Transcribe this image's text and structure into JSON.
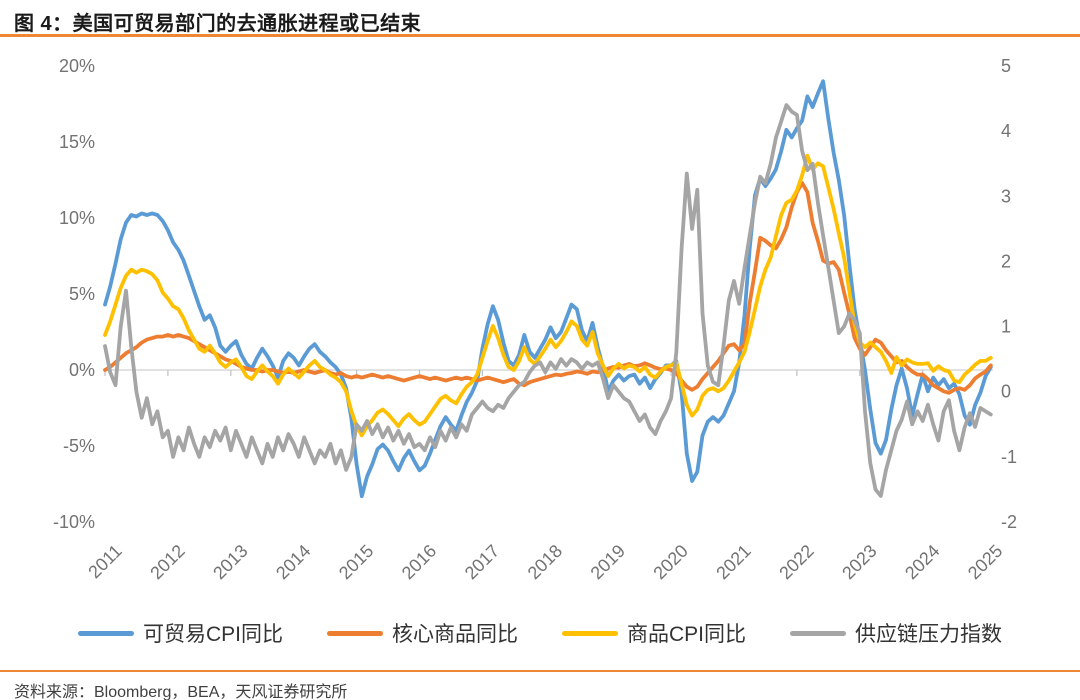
{
  "page": {
    "title": "图 4：美国可贸易部门的去通胀进程或已结束",
    "source": "资料来源：Bloomberg，BEA，天风证券研究所",
    "accent_color": "#ED8733",
    "background_color": "#FFFFFF"
  },
  "chart_data": {
    "type": "line",
    "title": "美国可贸易部门的去通胀进程或已结束",
    "x_start_year": 2011,
    "x_points_per_year": 12,
    "x_tick_labels": [
      "2011",
      "2012",
      "2013",
      "2014",
      "2015",
      "2016",
      "2017",
      "2018",
      "2019",
      "2020",
      "2021",
      "2022",
      "2023",
      "2024",
      "2025"
    ],
    "axes": {
      "left": {
        "ticks": [
          "20%",
          "15%",
          "10%",
          "5%",
          "0%",
          "-5%",
          "-10%"
        ],
        "max": 20,
        "min": -10
      },
      "right": {
        "ticks": [
          "5",
          "4",
          "3",
          "2",
          "1",
          "0",
          "-1",
          "-2"
        ],
        "max": 5,
        "min": -2
      }
    },
    "grid": "horizontal-zero-line-only",
    "gridline_color": "#D9D9D9",
    "tick_color": "#BFBFBF",
    "legend_position": "bottom",
    "series": [
      {
        "name": "可贸易CPI同比",
        "color": "#5B9BD5",
        "axis": "left",
        "values": [
          4.3,
          5.5,
          7.0,
          8.6,
          9.7,
          10.2,
          10.1,
          10.3,
          10.2,
          10.3,
          10.2,
          9.8,
          9.2,
          8.4,
          7.9,
          7.2,
          6.2,
          5.2,
          4.2,
          3.3,
          3.6,
          2.8,
          1.6,
          1.2,
          1.6,
          1.9,
          1.0,
          0.4,
          0.1,
          0.8,
          1.4,
          0.9,
          0.3,
          -0.5,
          0.6,
          1.1,
          0.8,
          0.3,
          0.9,
          1.4,
          1.7,
          1.2,
          0.9,
          0.5,
          0.2,
          -0.3,
          -1.2,
          -3.2,
          -6.2,
          -8.3,
          -7.0,
          -6.2,
          -5.2,
          -4.9,
          -5.3,
          -6.0,
          -6.6,
          -5.8,
          -5.3,
          -6.0,
          -6.6,
          -6.3,
          -5.5,
          -4.6,
          -3.7,
          -3.1,
          -3.6,
          -4.0,
          -3.0,
          -2.1,
          -1.5,
          -0.7,
          1.4,
          3.0,
          4.2,
          3.3,
          1.8,
          0.6,
          0.3,
          1.0,
          2.3,
          1.2,
          0.8,
          1.4,
          2.0,
          2.8,
          2.1,
          2.5,
          3.4,
          4.3,
          4.0,
          2.6,
          1.9,
          3.1,
          1.5,
          0.2,
          -1.4,
          -0.7,
          -0.3,
          -0.7,
          -0.4,
          -0.3,
          -0.9,
          -0.5,
          -1.2,
          -0.6,
          -0.2,
          0.3,
          0.3,
          0.6,
          -1.5,
          -5.5,
          -7.3,
          -6.7,
          -4.3,
          -3.4,
          -3.1,
          -3.4,
          -3.0,
          -2.2,
          -1.4,
          0.5,
          3.6,
          8.0,
          11.5,
          12.6,
          12.1,
          12.6,
          13.2,
          14.4,
          15.8,
          15.3,
          15.9,
          16.4,
          18.0,
          17.3,
          18.2,
          19.0,
          16.5,
          14.3,
          12.5,
          10.2,
          7.0,
          4.0,
          2.0,
          0.0,
          -2.6,
          -4.8,
          -5.5,
          -4.6,
          -2.6,
          -1.0,
          0.1,
          -1.2,
          -3.0,
          -1.6,
          -0.3,
          -1.4,
          -0.5,
          -1.0,
          -0.6,
          -1.2,
          -0.9,
          -1.6,
          -3.0,
          -3.6,
          -2.3,
          -1.5,
          -0.4,
          0.2
        ]
      },
      {
        "name": "核心商品同比",
        "color": "#ED7D31",
        "axis": "left",
        "values": [
          0.0,
          0.2,
          0.5,
          0.8,
          1.1,
          1.3,
          1.5,
          1.8,
          2.0,
          2.1,
          2.2,
          2.2,
          2.3,
          2.2,
          2.3,
          2.2,
          2.1,
          1.9,
          1.7,
          1.5,
          1.3,
          1.1,
          0.9,
          0.7,
          0.6,
          0.4,
          0.2,
          0.1,
          0.0,
          0.0,
          -0.1,
          0.0,
          0.0,
          -0.1,
          -0.2,
          -0.1,
          -0.2,
          -0.1,
          0.0,
          -0.1,
          -0.2,
          -0.1,
          0.0,
          -0.2,
          -0.3,
          -0.2,
          -0.4,
          -0.5,
          -0.4,
          -0.5,
          -0.4,
          -0.3,
          -0.4,
          -0.5,
          -0.4,
          -0.5,
          -0.6,
          -0.7,
          -0.6,
          -0.5,
          -0.4,
          -0.5,
          -0.6,
          -0.5,
          -0.6,
          -0.7,
          -0.6,
          -0.5,
          -0.6,
          -0.5,
          -0.6,
          -0.7,
          -0.6,
          -0.5,
          -0.6,
          -0.7,
          -0.8,
          -0.7,
          -0.6,
          -0.9,
          -1.0,
          -0.8,
          -0.7,
          -0.6,
          -0.5,
          -0.4,
          -0.3,
          -0.35,
          -0.25,
          -0.2,
          -0.1,
          -0.15,
          -0.25,
          -0.1,
          -0.15,
          -0.1,
          0.1,
          0.2,
          0.15,
          0.3,
          0.4,
          0.25,
          0.3,
          0.45,
          0.3,
          0.15,
          0.05,
          0.1,
          0.0,
          -0.2,
          -0.7,
          -1.1,
          -1.3,
          -1.1,
          -0.6,
          -0.2,
          0.2,
          0.6,
          1.1,
          1.6,
          1.7,
          1.3,
          1.7,
          4.4,
          6.5,
          8.7,
          8.5,
          8.2,
          8.0,
          8.6,
          9.4,
          10.7,
          11.7,
          12.3,
          11.7,
          9.7,
          8.5,
          7.2,
          7.0,
          7.1,
          6.6,
          5.1,
          3.7,
          2.1,
          1.4,
          1.0,
          1.5,
          2.0,
          1.8,
          1.3,
          0.9,
          0.5,
          0.6,
          0.2,
          -0.1,
          -0.3,
          -0.3,
          -0.6,
          -1.0,
          -1.2,
          -1.4,
          -1.5,
          -1.3,
          -1.2,
          -1.3,
          -1.0,
          -0.55,
          -0.3,
          -0.1,
          0.3
        ]
      },
      {
        "name": "商品CPI同比",
        "color": "#FFC000",
        "axis": "left",
        "values": [
          2.3,
          3.2,
          4.3,
          5.4,
          6.2,
          6.6,
          6.4,
          6.6,
          6.5,
          6.3,
          5.9,
          5.1,
          4.7,
          4.2,
          4.0,
          3.4,
          2.6,
          2.0,
          1.4,
          1.2,
          1.6,
          1.1,
          0.5,
          0.2,
          0.5,
          0.7,
          0.2,
          -0.4,
          -0.6,
          -0.1,
          0.3,
          -0.1,
          -0.4,
          -0.9,
          -0.3,
          0.1,
          -0.2,
          -0.5,
          -0.1,
          0.3,
          0.6,
          0.2,
          0.0,
          -0.3,
          -0.5,
          -0.8,
          -1.4,
          -2.7,
          -3.7,
          -4.3,
          -3.7,
          -3.3,
          -2.8,
          -2.6,
          -2.9,
          -3.3,
          -3.7,
          -3.2,
          -2.9,
          -3.3,
          -3.6,
          -3.4,
          -2.9,
          -2.4,
          -1.9,
          -1.7,
          -2.0,
          -2.2,
          -1.6,
          -1.1,
          -0.8,
          -0.3,
          0.8,
          1.9,
          2.9,
          2.1,
          1.0,
          0.2,
          0.0,
          0.6,
          1.5,
          0.7,
          0.4,
          0.9,
          1.4,
          2.0,
          1.5,
          1.9,
          2.5,
          3.2,
          2.9,
          2.0,
          1.6,
          2.5,
          1.1,
          0.3,
          -0.4,
          0.1,
          0.4,
          0.1,
          0.3,
          0.2,
          -0.1,
          0.2,
          -0.3,
          -0.5,
          -0.1,
          0.2,
          0.3,
          0.5,
          -0.9,
          -2.3,
          -3.0,
          -2.6,
          -1.7,
          -1.3,
          -1.2,
          -1.4,
          -1.2,
          -0.7,
          -0.1,
          0.5,
          1.2,
          2.5,
          4.0,
          5.5,
          6.6,
          7.4,
          8.8,
          10.2,
          11.0,
          11.2,
          11.8,
          12.8,
          14.1,
          13.2,
          13.6,
          13.4,
          12.0,
          10.6,
          9.0,
          7.4,
          5.2,
          3.0,
          1.8,
          1.5,
          1.8,
          1.5,
          1.2,
          0.6,
          -0.2,
          0.85,
          0.3,
          0.7,
          0.5,
          0.4,
          0.4,
          0.45,
          -0.05,
          0.25,
          0.0,
          -0.1,
          -0.7,
          -0.8,
          -0.3,
          0.0,
          0.35,
          0.6,
          0.6,
          0.8
        ]
      },
      {
        "name": "供应链压力指数",
        "color": "#A5A5A5",
        "axis": "right",
        "values": [
          0.7,
          0.3,
          0.1,
          1.0,
          1.55,
          0.7,
          0.0,
          -0.4,
          -0.1,
          -0.5,
          -0.3,
          -0.7,
          -0.6,
          -1.0,
          -0.7,
          -0.9,
          -0.55,
          -0.8,
          -1.0,
          -0.7,
          -0.85,
          -0.6,
          -0.75,
          -0.55,
          -0.9,
          -0.6,
          -0.8,
          -1.0,
          -0.7,
          -0.9,
          -1.1,
          -0.8,
          -1.0,
          -0.7,
          -0.9,
          -0.65,
          -0.8,
          -1.0,
          -0.7,
          -0.9,
          -1.1,
          -0.9,
          -1.0,
          -0.8,
          -1.1,
          -0.9,
          -1.2,
          -1.0,
          -0.5,
          -0.6,
          -0.45,
          -0.65,
          -0.5,
          -0.7,
          -0.55,
          -0.75,
          -0.6,
          -0.8,
          -0.65,
          -0.85,
          -0.8,
          -0.9,
          -0.7,
          -0.85,
          -0.6,
          -0.75,
          -0.55,
          -0.7,
          -0.5,
          -0.6,
          -0.35,
          -0.25,
          -0.15,
          -0.25,
          -0.3,
          -0.2,
          -0.25,
          -0.1,
          0.0,
          0.1,
          0.15,
          0.3,
          0.4,
          0.45,
          0.3,
          0.45,
          0.35,
          0.5,
          0.4,
          0.5,
          0.45,
          0.35,
          0.45,
          0.4,
          0.45,
          0.2,
          -0.1,
          0.1,
          0.0,
          -0.1,
          -0.15,
          -0.3,
          -0.45,
          -0.35,
          -0.55,
          -0.65,
          -0.45,
          -0.3,
          -0.1,
          0.6,
          2.2,
          3.35,
          2.5,
          3.1,
          1.2,
          0.4,
          0.15,
          0.1,
          0.7,
          1.4,
          1.7,
          1.35,
          1.9,
          2.4,
          2.9,
          3.3,
          3.2,
          3.5,
          3.9,
          4.15,
          4.4,
          4.3,
          4.25,
          3.7,
          3.4,
          3.5,
          2.9,
          2.4,
          1.9,
          1.4,
          0.9,
          1.0,
          1.2,
          1.1,
          0.9,
          -0.3,
          -1.1,
          -1.5,
          -1.6,
          -1.2,
          -0.9,
          -0.6,
          -0.43,
          -0.15,
          -0.5,
          -0.3,
          -0.45,
          -0.2,
          -0.5,
          -0.75,
          -0.3,
          -0.13,
          -0.6,
          -0.9,
          -0.55,
          -0.33,
          -0.54,
          -0.25,
          -0.3,
          -0.35
        ]
      }
    ]
  }
}
